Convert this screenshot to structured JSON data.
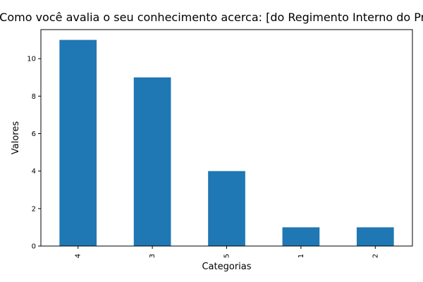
{
  "chart_data": {
    "type": "bar",
    "title": "Como você avalia o seu conhecimento acerca: [do Regimento Interno do Programa]",
    "xlabel": "Categorias",
    "ylabel": "Valores",
    "categories": [
      "4",
      "3",
      "5",
      "1",
      "2"
    ],
    "values": [
      11,
      9,
      4,
      1,
      1
    ],
    "ylim": [
      0,
      11.55
    ],
    "yticks": [
      0,
      2,
      4,
      6,
      8,
      10
    ],
    "grid": false,
    "legend": "none",
    "bar_color": "#1f77b4"
  }
}
